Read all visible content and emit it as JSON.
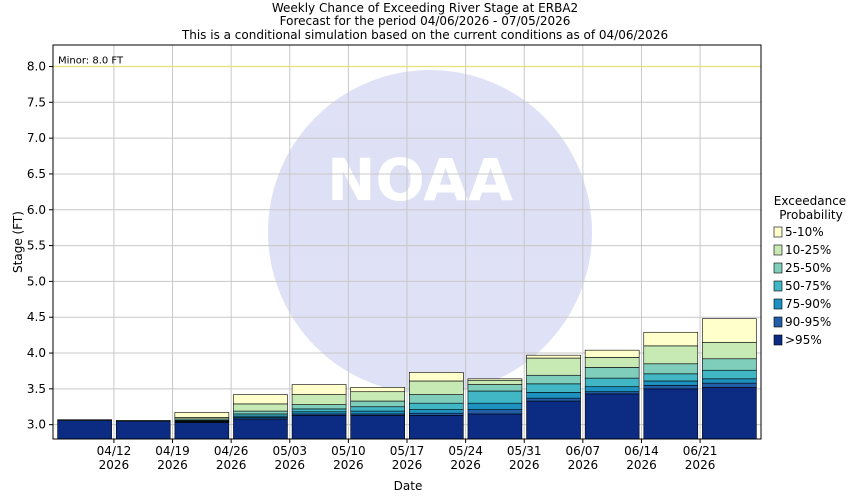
{
  "chart_data": {
    "type": "bar",
    "stacked": true,
    "title": [
      "Weekly Chance of Exceeding River Stage at ERBA2",
      "Forecast for the period 04/06/2026 - 07/05/2026",
      "This is a conditional simulation based on the current conditions as of 04/06/2026"
    ],
    "xlabel": "Date",
    "ylabel": "Stage (FT)",
    "ylim": [
      2.8,
      8.3
    ],
    "yticks": [
      "3.0",
      "3.5",
      "4.0",
      "4.5",
      "5.0",
      "5.5",
      "6.0",
      "6.5",
      "7.0",
      "7.5",
      "8.0"
    ],
    "xticks": [
      {
        "line1": "04/12",
        "line2": "2026"
      },
      {
        "line1": "04/19",
        "line2": "2026"
      },
      {
        "line1": "04/26",
        "line2": "2026"
      },
      {
        "line1": "05/03",
        "line2": "2026"
      },
      {
        "line1": "05/10",
        "line2": "2026"
      },
      {
        "line1": "05/17",
        "line2": "2026"
      },
      {
        "line1": "05/24",
        "line2": "2026"
      },
      {
        "line1": "05/31",
        "line2": "2026"
      },
      {
        "line1": "06/07",
        "line2": "2026"
      },
      {
        "line1": "06/14",
        "line2": "2026"
      },
      {
        "line1": "06/21",
        "line2": "2026"
      }
    ],
    "grid": true,
    "threshold": {
      "label": "Minor: 8.0 FT",
      "value": 8.0,
      "color": "#e8e070"
    },
    "legend": {
      "title": [
        "Exceedance",
        "Probability"
      ],
      "placement": "right",
      "entries": [
        {
          "label": "5-10%",
          "color": "#ffffcc"
        },
        {
          "label": "10-25%",
          "color": "#c7e9b4"
        },
        {
          "label": "25-50%",
          "color": "#7fcdbb"
        },
        {
          "label": "50-75%",
          "color": "#41b6c4"
        },
        {
          "label": "75-90%",
          "color": "#1d91c0"
        },
        {
          "label": "90-95%",
          "color": "#225ea8"
        },
        {
          "label": ">95%",
          "color": "#0c2c84"
        }
      ]
    },
    "weeks": [
      {
        "levels": [
          3.06,
          3.06,
          3.06,
          3.06,
          3.06,
          3.07,
          3.07
        ]
      },
      {
        "levels": [
          3.05,
          3.05,
          3.05,
          3.05,
          3.05,
          3.06,
          3.06
        ]
      },
      {
        "levels": [
          3.03,
          3.04,
          3.05,
          3.06,
          3.08,
          3.1,
          3.17
        ]
      },
      {
        "levels": [
          3.08,
          3.1,
          3.12,
          3.15,
          3.19,
          3.29,
          3.42
        ]
      },
      {
        "levels": [
          3.13,
          3.15,
          3.18,
          3.22,
          3.28,
          3.42,
          3.56
        ]
      },
      {
        "levels": [
          3.13,
          3.15,
          3.19,
          3.25,
          3.33,
          3.46,
          3.52
        ]
      },
      {
        "levels": [
          3.13,
          3.16,
          3.21,
          3.3,
          3.42,
          3.61,
          3.73
        ]
      },
      {
        "levels": [
          3.15,
          3.21,
          3.3,
          3.47,
          3.56,
          3.62,
          3.64
        ]
      },
      {
        "levels": [
          3.33,
          3.37,
          3.45,
          3.57,
          3.69,
          3.93,
          3.97
        ]
      },
      {
        "levels": [
          3.43,
          3.46,
          3.53,
          3.65,
          3.8,
          3.94,
          4.04
        ]
      },
      {
        "levels": [
          3.5,
          3.55,
          3.61,
          3.71,
          3.85,
          4.1,
          4.29
        ]
      },
      {
        "levels": [
          3.52,
          3.58,
          3.64,
          3.76,
          3.92,
          4.15,
          4.48
        ]
      }
    ]
  }
}
